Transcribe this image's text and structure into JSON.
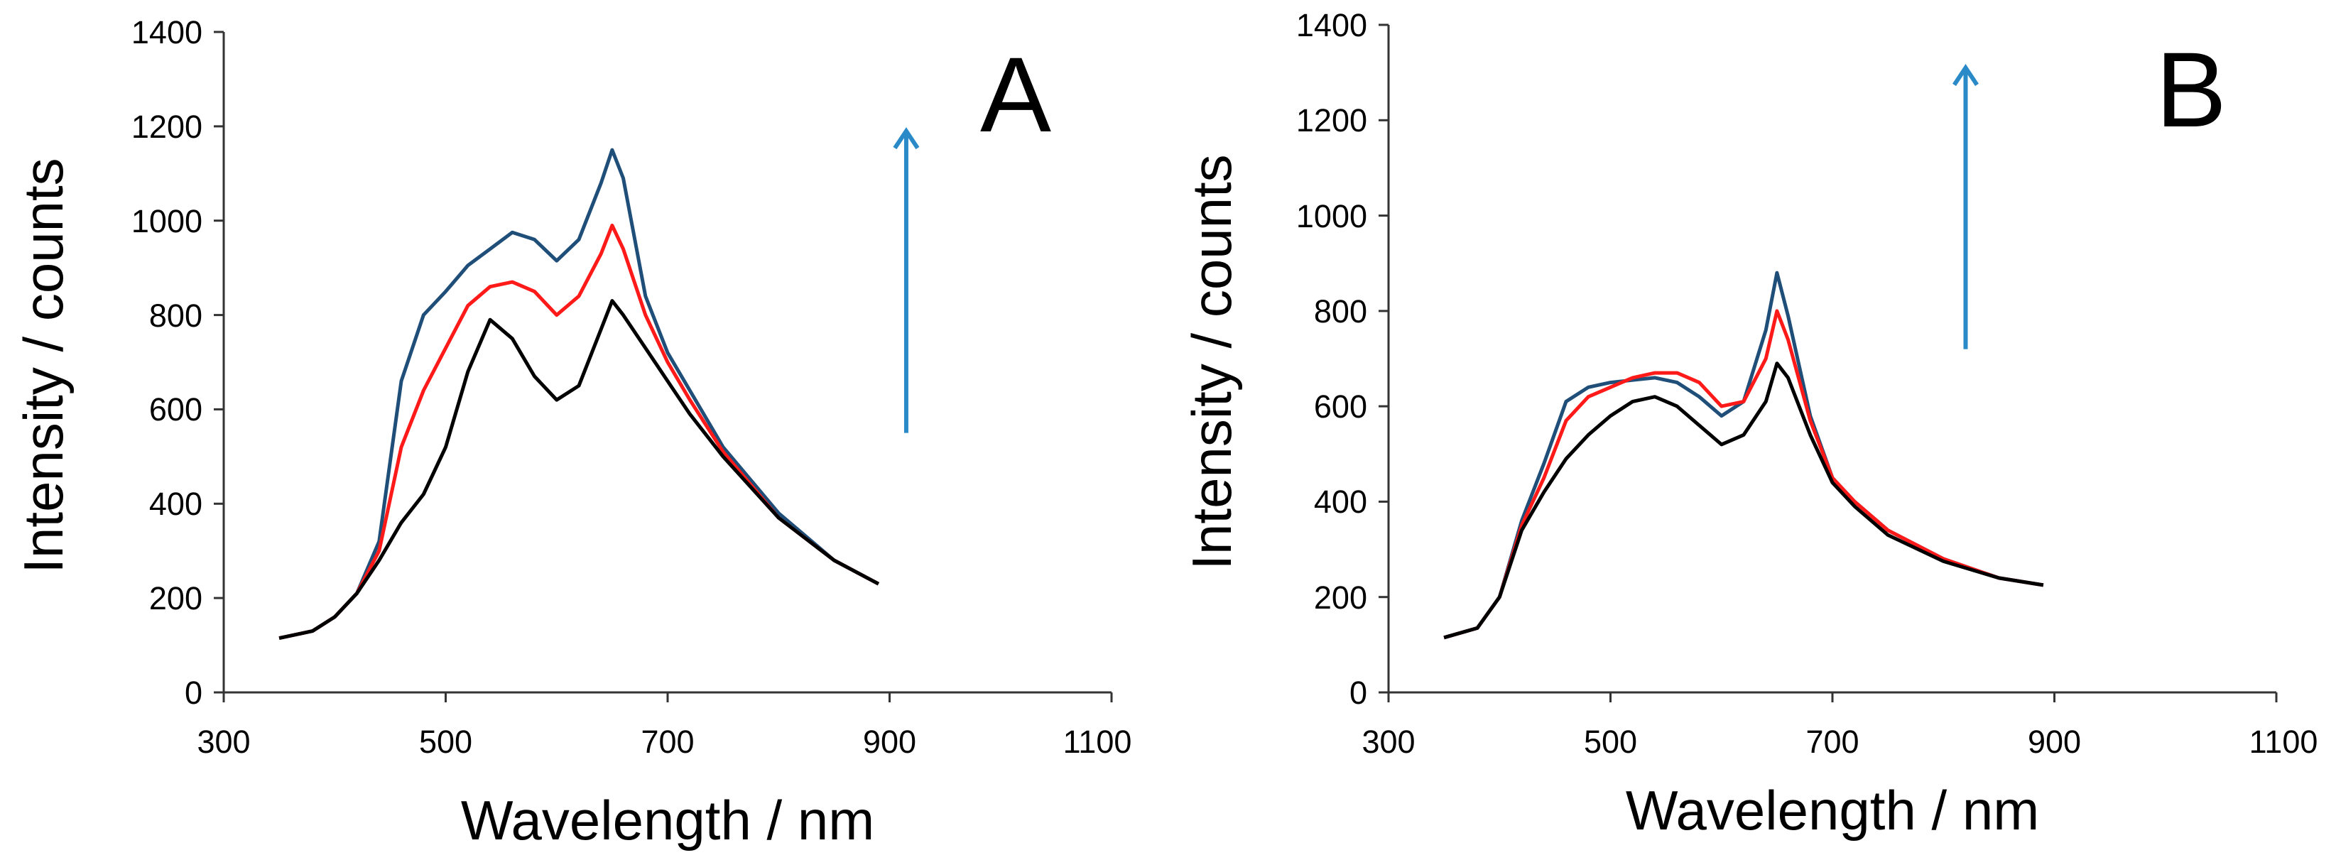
{
  "chart_data": [
    {
      "type": "line",
      "panel_label": "A",
      "xlabel": "Wavelength / nm",
      "ylabel": "Intensity / counts",
      "xlim": [
        300,
        1100
      ],
      "ylim": [
        0,
        1400
      ],
      "xticks": [
        "300",
        "500",
        "700",
        "900",
        "1100"
      ],
      "yticks": [
        "0",
        "200",
        "400",
        "600",
        "800",
        "1000",
        "1200",
        "1400"
      ],
      "grid": false,
      "arrow": {
        "x": 915,
        "y_from": 550,
        "y_to": 1190,
        "color": "#2a8ac8"
      },
      "series": [
        {
          "color": "#1f4e79",
          "x": [
            350,
            380,
            400,
            420,
            440,
            460,
            480,
            500,
            520,
            540,
            560,
            580,
            600,
            620,
            640,
            650,
            660,
            680,
            700,
            720,
            750,
            800,
            850,
            890
          ],
          "values": [
            115,
            130,
            160,
            210,
            320,
            660,
            800,
            850,
            905,
            940,
            975,
            960,
            915,
            960,
            1080,
            1150,
            1090,
            840,
            720,
            640,
            520,
            380,
            280,
            230
          ]
        },
        {
          "color": "#ff1a1a",
          "x": [
            350,
            380,
            400,
            420,
            440,
            460,
            480,
            500,
            520,
            540,
            560,
            580,
            600,
            620,
            640,
            650,
            660,
            680,
            700,
            720,
            750,
            800,
            850,
            890
          ],
          "values": [
            115,
            130,
            160,
            210,
            300,
            520,
            640,
            730,
            820,
            860,
            870,
            850,
            800,
            840,
            930,
            990,
            940,
            800,
            700,
            620,
            510,
            370,
            280,
            230
          ]
        },
        {
          "color": "#000000",
          "x": [
            350,
            380,
            400,
            420,
            440,
            460,
            480,
            500,
            520,
            540,
            560,
            580,
            600,
            620,
            640,
            650,
            660,
            680,
            700,
            720,
            750,
            800,
            850,
            890
          ],
          "values": [
            115,
            130,
            160,
            210,
            280,
            360,
            420,
            520,
            680,
            790,
            750,
            670,
            620,
            650,
            770,
            830,
            800,
            730,
            660,
            590,
            500,
            370,
            280,
            230
          ]
        }
      ]
    },
    {
      "type": "line",
      "panel_label": "B",
      "xlabel": "Wavelength / nm",
      "ylabel": "Intensity / counts",
      "xlim": [
        300,
        1100
      ],
      "ylim": [
        0,
        1400
      ],
      "xticks": [
        "300",
        "500",
        "700",
        "900",
        "1100"
      ],
      "yticks": [
        "0",
        "200",
        "400",
        "600",
        "800",
        "1000",
        "1200",
        "1400"
      ],
      "grid": false,
      "arrow": {
        "x": 820,
        "y_from": 720,
        "y_to": 1310,
        "color": "#2a8ac8"
      },
      "series": [
        {
          "color": "#1f4e79",
          "x": [
            350,
            380,
            400,
            420,
            440,
            460,
            480,
            500,
            520,
            540,
            560,
            580,
            600,
            620,
            640,
            650,
            660,
            680,
            700,
            720,
            750,
            800,
            850,
            890
          ],
          "values": [
            115,
            135,
            200,
            360,
            480,
            610,
            640,
            650,
            655,
            660,
            650,
            620,
            580,
            610,
            760,
            880,
            790,
            580,
            450,
            400,
            340,
            280,
            240,
            225
          ]
        },
        {
          "color": "#ff1a1a",
          "x": [
            350,
            380,
            400,
            420,
            440,
            460,
            480,
            500,
            520,
            540,
            560,
            580,
            600,
            620,
            640,
            650,
            660,
            680,
            700,
            720,
            750,
            800,
            850,
            890
          ],
          "values": [
            115,
            135,
            200,
            350,
            450,
            570,
            620,
            640,
            660,
            670,
            670,
            650,
            600,
            610,
            700,
            800,
            740,
            570,
            450,
            400,
            340,
            280,
            240,
            225
          ]
        },
        {
          "color": "#000000",
          "x": [
            350,
            380,
            400,
            420,
            440,
            460,
            480,
            500,
            520,
            540,
            560,
            580,
            600,
            620,
            640,
            650,
            660,
            680,
            700,
            720,
            750,
            800,
            850,
            890
          ],
          "values": [
            115,
            135,
            200,
            340,
            420,
            490,
            540,
            580,
            610,
            620,
            600,
            560,
            520,
            540,
            610,
            690,
            660,
            540,
            440,
            390,
            330,
            275,
            240,
            225
          ]
        }
      ]
    }
  ]
}
